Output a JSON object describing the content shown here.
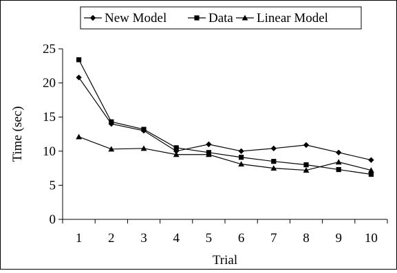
{
  "chart_data": {
    "type": "line",
    "title": "",
    "xlabel": "Trial",
    "ylabel": "Time (sec)",
    "x": [
      1,
      2,
      3,
      4,
      5,
      6,
      7,
      8,
      9,
      10
    ],
    "ylim": [
      0,
      25
    ],
    "yticks": [
      0,
      5,
      10,
      15,
      20,
      25
    ],
    "grid": false,
    "legend_position": "top",
    "series": [
      {
        "name": "New Model",
        "marker": "diamond",
        "color": "#000000",
        "values": [
          20.8,
          14.0,
          13.0,
          10.0,
          11.0,
          10.0,
          10.4,
          10.9,
          9.8,
          8.7
        ]
      },
      {
        "name": "Data",
        "marker": "square",
        "color": "#000000",
        "values": [
          23.4,
          14.3,
          13.2,
          10.5,
          9.8,
          9.1,
          8.5,
          8.0,
          7.3,
          6.6
        ]
      },
      {
        "name": "Linear Model",
        "marker": "triangle",
        "color": "#000000",
        "values": [
          12.1,
          10.3,
          10.4,
          9.5,
          9.5,
          8.1,
          7.5,
          7.2,
          8.4,
          7.2
        ]
      }
    ]
  }
}
